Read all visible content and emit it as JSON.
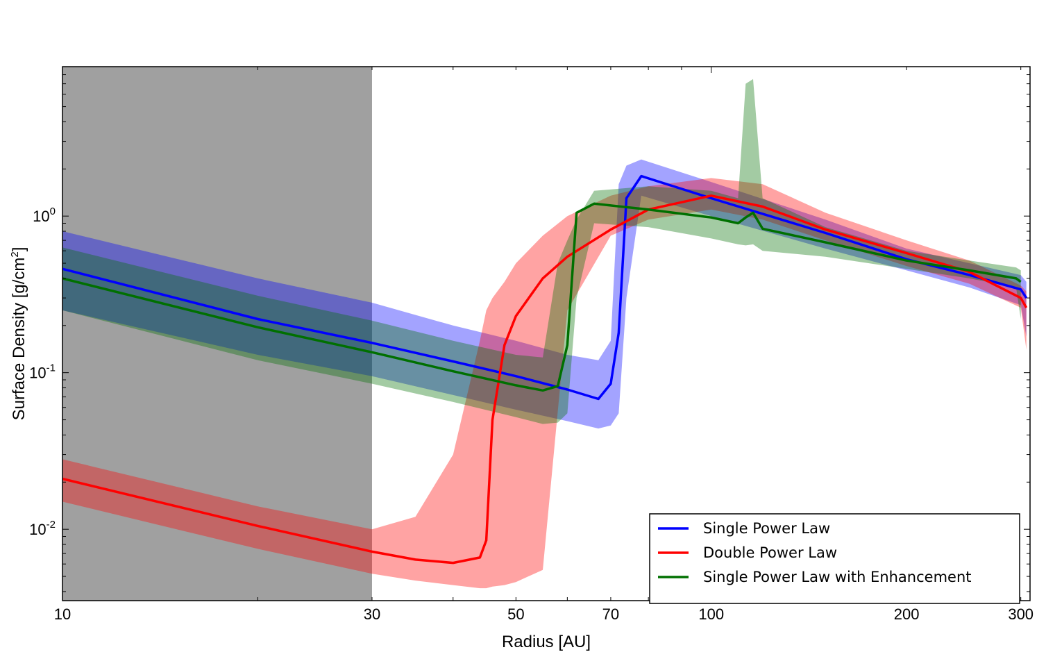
{
  "chart_data": {
    "type": "line",
    "xlabel": "Radius [AU]",
    "ylabel_main": "Surface Density [g/cm",
    "ylabel_sup": "2",
    "ylabel_end": "]",
    "xscale": "log",
    "yscale": "log",
    "xlim": [
      10,
      310
    ],
    "ylim": [
      0.0035,
      9.0
    ],
    "xticks": [
      {
        "value": 10,
        "label": "10"
      },
      {
        "value": 30,
        "label": "30"
      },
      {
        "value": 50,
        "label": "50"
      },
      {
        "value": 70,
        "label": "70"
      },
      {
        "value": 100,
        "label": "100"
      },
      {
        "value": 200,
        "label": "200"
      },
      {
        "value": 300,
        "label": "300"
      }
    ],
    "yticks": [
      {
        "value": 1,
        "base": "10",
        "exp": "0"
      },
      {
        "value": 0.1,
        "base": "10",
        "exp": "-1"
      },
      {
        "value": 0.01,
        "base": "10",
        "exp": "-2"
      }
    ],
    "shaded_region": {
      "x0": 10,
      "x1": 30,
      "color": "#a0a0a0"
    },
    "legend": {
      "placement": "lower-right"
    },
    "series": [
      {
        "name": "Single Power Law",
        "color": "#0000ff",
        "x": [
          10,
          20,
          30,
          40,
          50,
          60,
          67,
          70,
          72,
          74,
          78,
          100,
          150,
          200,
          250,
          300,
          306
        ],
        "y": [
          0.46,
          0.22,
          0.155,
          0.118,
          0.095,
          0.078,
          0.068,
          0.085,
          0.18,
          1.3,
          1.8,
          1.3,
          0.78,
          0.53,
          0.42,
          0.34,
          0.3
        ],
        "lower": [
          0.25,
          0.13,
          0.095,
          0.072,
          0.058,
          0.049,
          0.044,
          0.046,
          0.055,
          0.3,
          1.35,
          1.0,
          0.62,
          0.45,
          0.35,
          0.27,
          0.17
        ],
        "upper": [
          0.8,
          0.4,
          0.28,
          0.2,
          0.16,
          0.13,
          0.12,
          0.16,
          1.6,
          2.1,
          2.3,
          1.65,
          0.95,
          0.62,
          0.5,
          0.42,
          0.38
        ]
      },
      {
        "name": "Double Power Law",
        "color": "#ff0000",
        "x": [
          10,
          20,
          30,
          35,
          40,
          44,
          45,
          46,
          48,
          50,
          55,
          60,
          70,
          80,
          100,
          120,
          150,
          200,
          250,
          300,
          306
        ],
        "y": [
          0.021,
          0.0105,
          0.0072,
          0.0064,
          0.0061,
          0.0066,
          0.0085,
          0.05,
          0.15,
          0.23,
          0.4,
          0.55,
          0.82,
          1.1,
          1.35,
          1.15,
          0.82,
          0.58,
          0.44,
          0.3,
          0.26
        ],
        "lower": [
          0.015,
          0.0075,
          0.0052,
          0.0047,
          0.0044,
          0.0042,
          0.0042,
          0.0043,
          0.0044,
          0.0046,
          0.0055,
          0.25,
          0.75,
          0.95,
          1.1,
          0.95,
          0.7,
          0.48,
          0.37,
          0.26,
          0.14
        ],
        "upper": [
          0.028,
          0.014,
          0.01,
          0.012,
          0.03,
          0.16,
          0.25,
          0.3,
          0.38,
          0.5,
          0.75,
          1.0,
          1.35,
          1.55,
          1.75,
          1.6,
          1.05,
          0.7,
          0.52,
          0.36,
          0.33
        ]
      },
      {
        "name": "Single Power Law with Enhancement",
        "color": "#007000",
        "x": [
          10,
          20,
          30,
          40,
          50,
          55,
          58,
          60,
          62,
          66,
          80,
          100,
          110,
          113,
          116,
          120,
          150,
          200,
          250,
          295,
          300
        ],
        "y": [
          0.4,
          0.195,
          0.135,
          0.102,
          0.083,
          0.077,
          0.082,
          0.15,
          1.05,
          1.2,
          1.1,
          0.98,
          0.9,
          0.98,
          1.05,
          0.83,
          0.68,
          0.52,
          0.45,
          0.4,
          0.38
        ],
        "lower": [
          0.25,
          0.12,
          0.085,
          0.065,
          0.052,
          0.047,
          0.048,
          0.055,
          0.3,
          0.9,
          0.85,
          0.72,
          0.66,
          0.65,
          0.66,
          0.6,
          0.55,
          0.46,
          0.4,
          0.35,
          0.22
        ],
        "upper": [
          0.63,
          0.31,
          0.215,
          0.16,
          0.13,
          0.125,
          0.5,
          0.7,
          0.95,
          1.45,
          1.55,
          1.45,
          1.3,
          7.0,
          7.5,
          1.3,
          0.85,
          0.6,
          0.52,
          0.47,
          0.45
        ]
      }
    ]
  }
}
